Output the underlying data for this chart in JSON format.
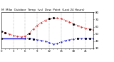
{
  "title": "M  Milw  Outdoor  Temp  (vs)  Dew  Point  (Last 24 Hours)",
  "bg_color": "#ffffff",
  "plot_bg": "#ffffff",
  "grid_color": "#999999",
  "temp_color": "#cc0000",
  "dew_color": "#0000cc",
  "temp_x": [
    0,
    1,
    2,
    3,
    4,
    5,
    6,
    7,
    8,
    9,
    10,
    11,
    12,
    13,
    14,
    15,
    16,
    17,
    18,
    19,
    20,
    21,
    22,
    23
  ],
  "temp_y": [
    54,
    52,
    50,
    48,
    47,
    46,
    47,
    51,
    57,
    62,
    66,
    69,
    71,
    72,
    72,
    71,
    69,
    67,
    64,
    62,
    60,
    58,
    57,
    56
  ],
  "dew_x": [
    0,
    1,
    2,
    3,
    4,
    5,
    6,
    7,
    8,
    9,
    10,
    11,
    12,
    13,
    14,
    15,
    16,
    17,
    18,
    19,
    20,
    21,
    22,
    23
  ],
  "dew_y": [
    44,
    44,
    44,
    44,
    44,
    44,
    44,
    44,
    43,
    42,
    41,
    40,
    38,
    36,
    37,
    39,
    41,
    42,
    43,
    44,
    44,
    44,
    44,
    44
  ],
  "dew_solid_end": 6,
  "ylim": [
    30,
    80
  ],
  "yticks": [
    30,
    40,
    50,
    60,
    70,
    80
  ],
  "xlim": [
    0,
    23
  ],
  "xticks": [
    0,
    1,
    2,
    3,
    4,
    5,
    6,
    7,
    8,
    9,
    10,
    11,
    12,
    13,
    14,
    15,
    16,
    17,
    18,
    19,
    20,
    21,
    22,
    23
  ],
  "title_fontsize": 3.0,
  "tick_fontsize": 2.8,
  "line_width": 0.7,
  "marker_size": 1.0,
  "vgrid_positions": [
    3,
    6,
    9,
    12,
    15,
    18,
    21
  ]
}
